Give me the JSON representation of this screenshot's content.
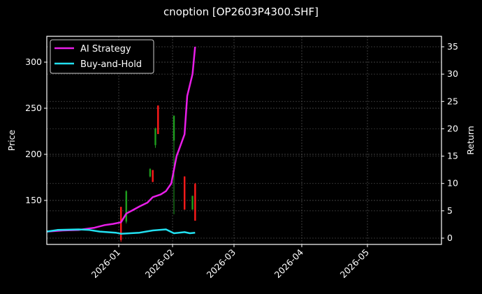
{
  "chart_data": {
    "type": "line",
    "title": "cnoption [OP2603P4300.SHF]",
    "xlabel": "",
    "ylabel": "Price",
    "y2label": "Return",
    "x_ticks": [
      "2026-01",
      "2026-02",
      "2026-03",
      "2026-04",
      "2026-05"
    ],
    "y_ticks": [
      150,
      200,
      250,
      300
    ],
    "y2_ticks": [
      0,
      5,
      10,
      15,
      20,
      25,
      30,
      35
    ],
    "ylim": [
      103,
      327
    ],
    "y2lim": [
      -0.8,
      37
    ],
    "grid": true,
    "legend_position": "upper left",
    "series": [
      {
        "name": "AI Strategy",
        "axis": "right",
        "color": "#e81ee8",
        "points": [
          [
            "2025-12-06",
            1.2
          ],
          [
            "2025-12-12",
            1.4
          ],
          [
            "2025-12-18",
            1.5
          ],
          [
            "2025-12-24",
            1.9
          ],
          [
            "2025-12-28",
            2.4
          ],
          [
            "2025-12-31",
            2.6
          ],
          [
            "2026-01-03",
            2.9
          ],
          [
            "2026-01-05",
            4.5
          ],
          [
            "2026-01-07",
            5.0
          ],
          [
            "2026-01-10",
            5.8
          ],
          [
            "2026-01-13",
            6.5
          ],
          [
            "2026-01-15",
            7.5
          ],
          [
            "2026-01-18",
            8.0
          ],
          [
            "2026-01-20",
            8.6
          ],
          [
            "2026-01-22",
            10.0
          ],
          [
            "2026-01-24",
            15.0
          ],
          [
            "2026-01-27",
            19.0
          ],
          [
            "2026-01-28",
            26.0
          ],
          [
            "2026-01-30",
            30.0
          ],
          [
            "2026-01-31",
            35.0
          ]
        ]
      },
      {
        "name": "Buy-and-Hold",
        "axis": "right",
        "color": "#22e0f0",
        "points": [
          [
            "2025-12-06",
            1.2
          ],
          [
            "2025-12-10",
            1.5
          ],
          [
            "2025-12-18",
            1.6
          ],
          [
            "2025-12-22",
            1.5
          ],
          [
            "2025-12-26",
            1.2
          ],
          [
            "2026-01-01",
            1.0
          ],
          [
            "2026-01-03",
            0.8
          ],
          [
            "2026-01-10",
            1.0
          ],
          [
            "2026-01-15",
            1.4
          ],
          [
            "2026-01-20",
            1.6
          ],
          [
            "2026-01-23",
            0.9
          ],
          [
            "2026-01-27",
            1.1
          ],
          [
            "2026-01-29",
            0.9
          ],
          [
            "2026-01-31",
            1.0
          ]
        ]
      }
    ],
    "candlesticks": [
      {
        "date": "2026-01-03",
        "open": 143,
        "close": 107,
        "high": 143,
        "low": 105,
        "color": "red"
      },
      {
        "date": "2026-01-05",
        "open": 127,
        "close": 160,
        "high": 161,
        "low": 125,
        "color": "green"
      },
      {
        "date": "2026-01-14",
        "open": 176,
        "close": 184,
        "high": 185,
        "low": 175,
        "color": "green"
      },
      {
        "date": "2026-01-15",
        "open": 183,
        "close": 170,
        "high": 183,
        "low": 170,
        "color": "red"
      },
      {
        "date": "2026-01-16",
        "open": 210,
        "close": 228,
        "high": 229,
        "low": 207,
        "color": "green"
      },
      {
        "date": "2026-01-17",
        "open": 253,
        "close": 222,
        "high": 253,
        "low": 222,
        "color": "red"
      },
      {
        "date": "2026-01-23",
        "open": 215,
        "close": 242,
        "high": 242,
        "low": 135,
        "color": "green"
      },
      {
        "date": "2026-01-27",
        "open": 176,
        "close": 140,
        "high": 176,
        "low": 140,
        "color": "red"
      },
      {
        "date": "2026-01-30",
        "open": 140,
        "close": 155,
        "high": 155,
        "low": 140,
        "color": "green"
      },
      {
        "date": "2026-01-31",
        "open": 168,
        "close": 128,
        "high": 169,
        "low": 128,
        "color": "red"
      }
    ]
  },
  "legend": [
    {
      "label": "AI Strategy",
      "color": "#e81ee8"
    },
    {
      "label": "Buy-and-Hold",
      "color": "#22e0f0"
    }
  ]
}
